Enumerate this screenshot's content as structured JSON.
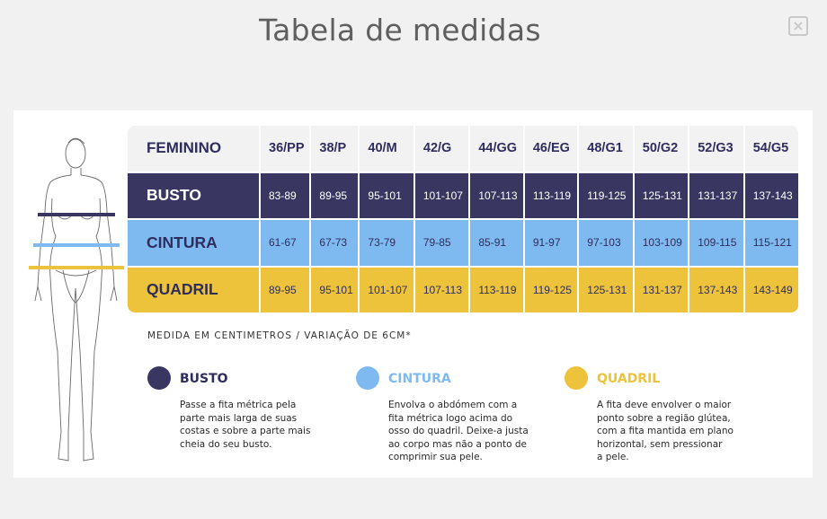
{
  "modal": {
    "title": "Tabela de medidas",
    "close_icon": "close-icon"
  },
  "colors": {
    "navy": "#393762",
    "blue": "#7ebaf0",
    "yellow": "#ecc33a",
    "header_bg": "#f2f2f2"
  },
  "table": {
    "corner_label": "FEMININO",
    "sizes": [
      "36/PP",
      "38/P",
      "40/M",
      "42/G",
      "44/GG",
      "46/EG",
      "48/G1",
      "50/G2",
      "52/G3",
      "54/G5"
    ],
    "rows": [
      {
        "label": "BUSTO",
        "values": [
          "83-89",
          "89-95",
          "95-101",
          "101-107",
          "107-113",
          "113-119",
          "119-125",
          "125-131",
          "131-137",
          "137-143"
        ]
      },
      {
        "label": "CINTURA",
        "values": [
          "61-67",
          "67-73",
          "73-79",
          "79-85",
          "85-91",
          "91-97",
          "97-103",
          "103-109",
          "109-115",
          "115-121"
        ]
      },
      {
        "label": "QUADRIL",
        "values": [
          "89-95",
          "95-101",
          "101-107",
          "107-113",
          "113-119",
          "119-125",
          "125-131",
          "131-137",
          "137-143",
          "143-149"
        ]
      }
    ]
  },
  "note": "MEDIDA EM CENTIMETROS / VARIAÇÃO DE 6CM*",
  "legend": [
    {
      "title": "BUSTO",
      "color": "#393762",
      "text_color": "#2f2d5e",
      "description": "Passe a fita métrica pela\nparte mais larga de suas\ncostas e sobre a parte mais\ncheia do seu busto."
    },
    {
      "title": "CINTURA",
      "color": "#7ebaf0",
      "text_color": "#7ebaf0",
      "description": "Envolva o abdómem com a\nfita métrica logo acima do\nosso do quadril. Deixe-a justa\nao corpo mas não a ponto de\ncomprimir sua pele."
    },
    {
      "title": "QUADRIL",
      "color": "#ecc33a",
      "text_color": "#ecc33a",
      "description": "A fita deve envolver o maior\nponto sobre a região glútea,\ncom a fita mantida em plano\nhorizontal, sem pressionar\na pele."
    }
  ]
}
